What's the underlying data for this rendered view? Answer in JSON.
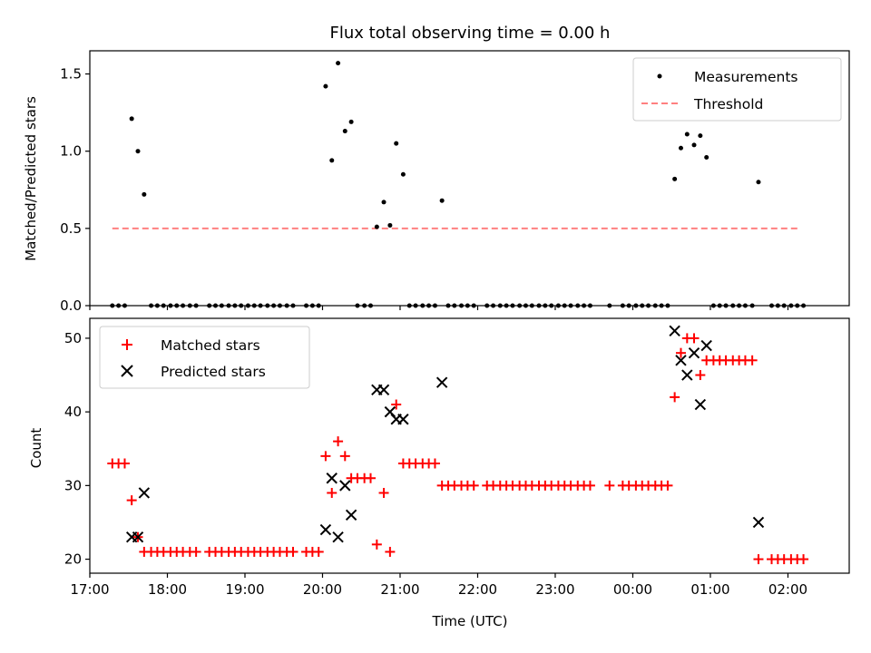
{
  "title": "Flux total observing time = 0.00 h",
  "colors": {
    "measurement": "#000000",
    "threshold": "#ff8080",
    "matched": "#ff0000",
    "predicted": "#000000"
  },
  "chart_data": [
    {
      "type": "scatter",
      "ylabel": "Matched/Predicted stars",
      "ylim": [
        0,
        1.65
      ],
      "yticks": [
        0.0,
        0.5,
        1.0,
        1.5
      ],
      "ytick_labels": [
        "0.0",
        "0.5",
        "1.0",
        "1.5"
      ],
      "xlim": [
        17.0,
        26.79
      ],
      "legend": {
        "position": "top-right",
        "entries": [
          "Measurements",
          "Threshold"
        ]
      },
      "threshold": {
        "name": "Threshold",
        "value": 0.5,
        "x": [
          17.29,
          26.14
        ]
      },
      "series": [
        {
          "name": "Measurements",
          "x": [
            17.29,
            17.37,
            17.45,
            17.54,
            17.62,
            17.7,
            17.79,
            17.87,
            17.95,
            18.04,
            18.12,
            18.2,
            18.29,
            18.37,
            18.54,
            18.62,
            18.7,
            18.79,
            18.87,
            18.95,
            19.04,
            19.12,
            19.2,
            19.29,
            19.37,
            19.45,
            19.54,
            19.62,
            19.79,
            19.87,
            19.95,
            20.04,
            20.12,
            20.2,
            20.29,
            20.37,
            20.45,
            20.54,
            20.62,
            20.7,
            20.79,
            20.87,
            20.95,
            21.04,
            21.12,
            21.2,
            21.29,
            21.37,
            21.45,
            21.54,
            21.62,
            21.7,
            21.79,
            21.87,
            21.95,
            22.12,
            22.2,
            22.29,
            22.37,
            22.45,
            22.54,
            22.62,
            22.7,
            22.79,
            22.87,
            22.95,
            23.04,
            23.12,
            23.2,
            23.29,
            23.37,
            23.45,
            23.7,
            23.87,
            23.95,
            24.04,
            24.12,
            24.2,
            24.29,
            24.37,
            24.45,
            24.54,
            24.62,
            24.7,
            24.79,
            24.87,
            24.95,
            25.04,
            25.12,
            25.2,
            25.29,
            25.37,
            25.45,
            25.54,
            25.62,
            25.79,
            25.87,
            25.95,
            26.04,
            26.12,
            26.2
          ],
          "y": [
            0,
            0,
            0,
            1.21,
            1.0,
            0.72,
            0,
            0,
            0,
            0,
            0,
            0,
            0,
            0,
            0,
            0,
            0,
            0,
            0,
            0,
            0,
            0,
            0,
            0,
            0,
            0,
            0,
            0,
            0,
            0,
            0,
            1.42,
            0.94,
            1.57,
            1.13,
            1.19,
            0,
            0,
            0,
            0.51,
            0.67,
            0.52,
            1.05,
            0.85,
            0,
            0,
            0,
            0,
            0,
            0.68,
            0,
            0,
            0,
            0,
            0,
            0,
            0,
            0,
            0,
            0,
            0,
            0,
            0,
            0,
            0,
            0,
            0,
            0,
            0,
            0,
            0,
            0,
            0,
            0,
            0,
            0,
            0,
            0,
            0,
            0,
            0,
            0.82,
            1.02,
            1.11,
            1.04,
            1.1,
            0.96,
            0,
            0,
            0,
            0,
            0,
            0,
            0,
            0.8,
            0,
            0,
            0,
            0,
            0,
            0
          ]
        }
      ]
    },
    {
      "type": "scatter",
      "xlabel": "Time (UTC)",
      "ylabel": "Count",
      "ylim": [
        18.1,
        52.7
      ],
      "yticks": [
        20,
        30,
        40,
        50
      ],
      "ytick_labels": [
        "20",
        "30",
        "40",
        "50"
      ],
      "xlim": [
        17.0,
        26.79
      ],
      "xticks": [
        17,
        18,
        19,
        20,
        21,
        22,
        23,
        24,
        25,
        26
      ],
      "xtick_labels": [
        "17:00",
        "18:00",
        "19:00",
        "20:00",
        "21:00",
        "22:00",
        "23:00",
        "00:00",
        "01:00",
        "02:00"
      ],
      "legend": {
        "position": "top-left",
        "entries": [
          "Matched stars",
          "Predicted stars"
        ]
      },
      "series": [
        {
          "name": "Matched stars",
          "marker": "plus",
          "x": [
            17.29,
            17.37,
            17.45,
            17.54,
            17.62,
            17.7,
            17.79,
            17.87,
            17.95,
            18.04,
            18.12,
            18.2,
            18.29,
            18.37,
            18.54,
            18.62,
            18.7,
            18.79,
            18.87,
            18.95,
            19.04,
            19.12,
            19.2,
            19.29,
            19.37,
            19.45,
            19.54,
            19.62,
            19.79,
            19.87,
            19.95,
            20.04,
            20.12,
            20.2,
            20.29,
            20.37,
            20.45,
            20.54,
            20.62,
            20.7,
            20.79,
            20.87,
            20.95,
            21.04,
            21.12,
            21.2,
            21.29,
            21.37,
            21.45,
            21.54,
            21.62,
            21.7,
            21.79,
            21.87,
            21.95,
            22.12,
            22.2,
            22.29,
            22.37,
            22.45,
            22.54,
            22.62,
            22.7,
            22.79,
            22.87,
            22.95,
            23.04,
            23.12,
            23.2,
            23.29,
            23.37,
            23.45,
            23.7,
            23.87,
            23.95,
            24.04,
            24.12,
            24.2,
            24.29,
            24.37,
            24.45,
            24.54,
            24.62,
            24.7,
            24.79,
            24.87,
            24.95,
            25.04,
            25.12,
            25.2,
            25.29,
            25.37,
            25.45,
            25.54,
            25.62,
            25.79,
            25.87,
            25.95,
            26.04,
            26.12,
            26.2
          ],
          "y": [
            33,
            33,
            33,
            28,
            23,
            21,
            21,
            21,
            21,
            21,
            21,
            21,
            21,
            21,
            21,
            21,
            21,
            21,
            21,
            21,
            21,
            21,
            21,
            21,
            21,
            21,
            21,
            21,
            21,
            21,
            21,
            34,
            29,
            36,
            34,
            31,
            31,
            31,
            31,
            22,
            29,
            21,
            41,
            33,
            33,
            33,
            33,
            33,
            33,
            30,
            30,
            30,
            30,
            30,
            30,
            30,
            30,
            30,
            30,
            30,
            30,
            30,
            30,
            30,
            30,
            30,
            30,
            30,
            30,
            30,
            30,
            30,
            30,
            30,
            30,
            30,
            30,
            30,
            30,
            30,
            30,
            42,
            48,
            50,
            50,
            45,
            47,
            47,
            47,
            47,
            47,
            47,
            47,
            47,
            20,
            20,
            20,
            20,
            20,
            20,
            20
          ]
        },
        {
          "name": "Predicted stars",
          "marker": "x",
          "x": [
            17.54,
            17.62,
            17.7,
            20.04,
            20.12,
            20.2,
            20.29,
            20.37,
            20.7,
            20.79,
            20.87,
            20.95,
            21.04,
            21.54,
            24.54,
            24.62,
            24.7,
            24.79,
            24.87,
            24.95,
            25.62
          ],
          "y": [
            23,
            23,
            29,
            24,
            31,
            23,
            30,
            26,
            43,
            43,
            40,
            39,
            39,
            44,
            51,
            47,
            45,
            48,
            41,
            49,
            25
          ]
        }
      ]
    }
  ]
}
